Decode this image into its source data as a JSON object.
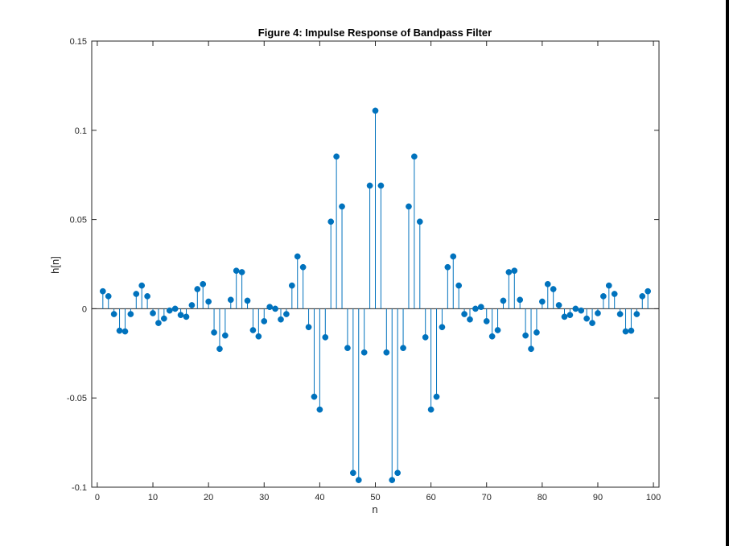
{
  "chart_data": {
    "type": "stem",
    "title": "Figure 4: Impulse Response of Bandpass Filter",
    "xlabel": "n",
    "ylabel": "h[n]",
    "xlim": [
      -1,
      101
    ],
    "ylim": [
      -0.1,
      0.15
    ],
    "xticks": [
      "0",
      "10",
      "20",
      "30",
      "40",
      "50",
      "60",
      "70",
      "80",
      "90",
      "100"
    ],
    "yticks": [
      "-0.1",
      "-0.05",
      "0",
      "0.05",
      "0.1",
      "0.15"
    ],
    "grid": false,
    "marker_color": "#0072BD",
    "x": [
      1,
      2,
      3,
      4,
      5,
      6,
      7,
      8,
      9,
      10,
      11,
      12,
      13,
      14,
      15,
      16,
      17,
      18,
      19,
      20,
      21,
      22,
      23,
      24,
      25,
      26,
      27,
      28,
      29,
      30,
      31,
      32,
      33,
      34,
      35,
      36,
      37,
      38,
      39,
      40,
      41,
      42,
      43,
      44,
      45,
      46,
      47,
      48,
      49,
      50,
      51,
      52,
      53,
      54,
      55,
      56,
      57,
      58,
      59,
      60,
      61,
      62,
      63,
      64,
      65,
      66,
      67,
      68,
      69,
      70,
      71,
      72,
      73,
      74,
      75,
      76,
      77,
      78,
      79,
      80,
      81,
      82,
      83,
      84,
      85,
      86,
      87,
      88,
      89,
      90,
      91,
      92,
      93,
      94,
      95,
      96,
      97,
      98,
      99
    ],
    "y": [
      0.0098,
      0.007,
      -0.003,
      -0.0123,
      -0.0127,
      -0.003,
      0.0083,
      0.013,
      0.007,
      -0.0025,
      -0.008,
      -0.0055,
      -0.001,
      0.0,
      -0.0035,
      -0.0045,
      0.002,
      0.011,
      0.0138,
      0.004,
      -0.0133,
      -0.0225,
      -0.015,
      0.005,
      0.0213,
      0.0205,
      0.0045,
      -0.012,
      -0.0155,
      -0.007,
      0.001,
      0.0,
      -0.006,
      -0.003,
      0.013,
      0.0293,
      0.0233,
      -0.0103,
      -0.0493,
      -0.0565,
      -0.016,
      0.0488,
      0.0853,
      0.0573,
      -0.022,
      -0.092,
      -0.096,
      -0.0245,
      0.069,
      0.111,
      0.069,
      -0.0245,
      -0.096,
      -0.092,
      -0.022,
      0.0573,
      0.0853,
      0.0488,
      -0.016,
      -0.0565,
      -0.0493,
      -0.0103,
      0.0233,
      0.0293,
      0.013,
      -0.003,
      -0.006,
      0.0,
      0.001,
      -0.007,
      -0.0155,
      -0.012,
      0.0045,
      0.0205,
      0.0213,
      0.005,
      -0.015,
      -0.0225,
      -0.0133,
      0.004,
      0.0138,
      0.011,
      0.002,
      -0.0045,
      -0.0035,
      0.0,
      -0.001,
      -0.0055,
      -0.008,
      -0.0025,
      0.007,
      0.013,
      0.0083,
      -0.003,
      -0.0127,
      -0.0123,
      -0.003,
      0.007,
      0.0098
    ]
  }
}
